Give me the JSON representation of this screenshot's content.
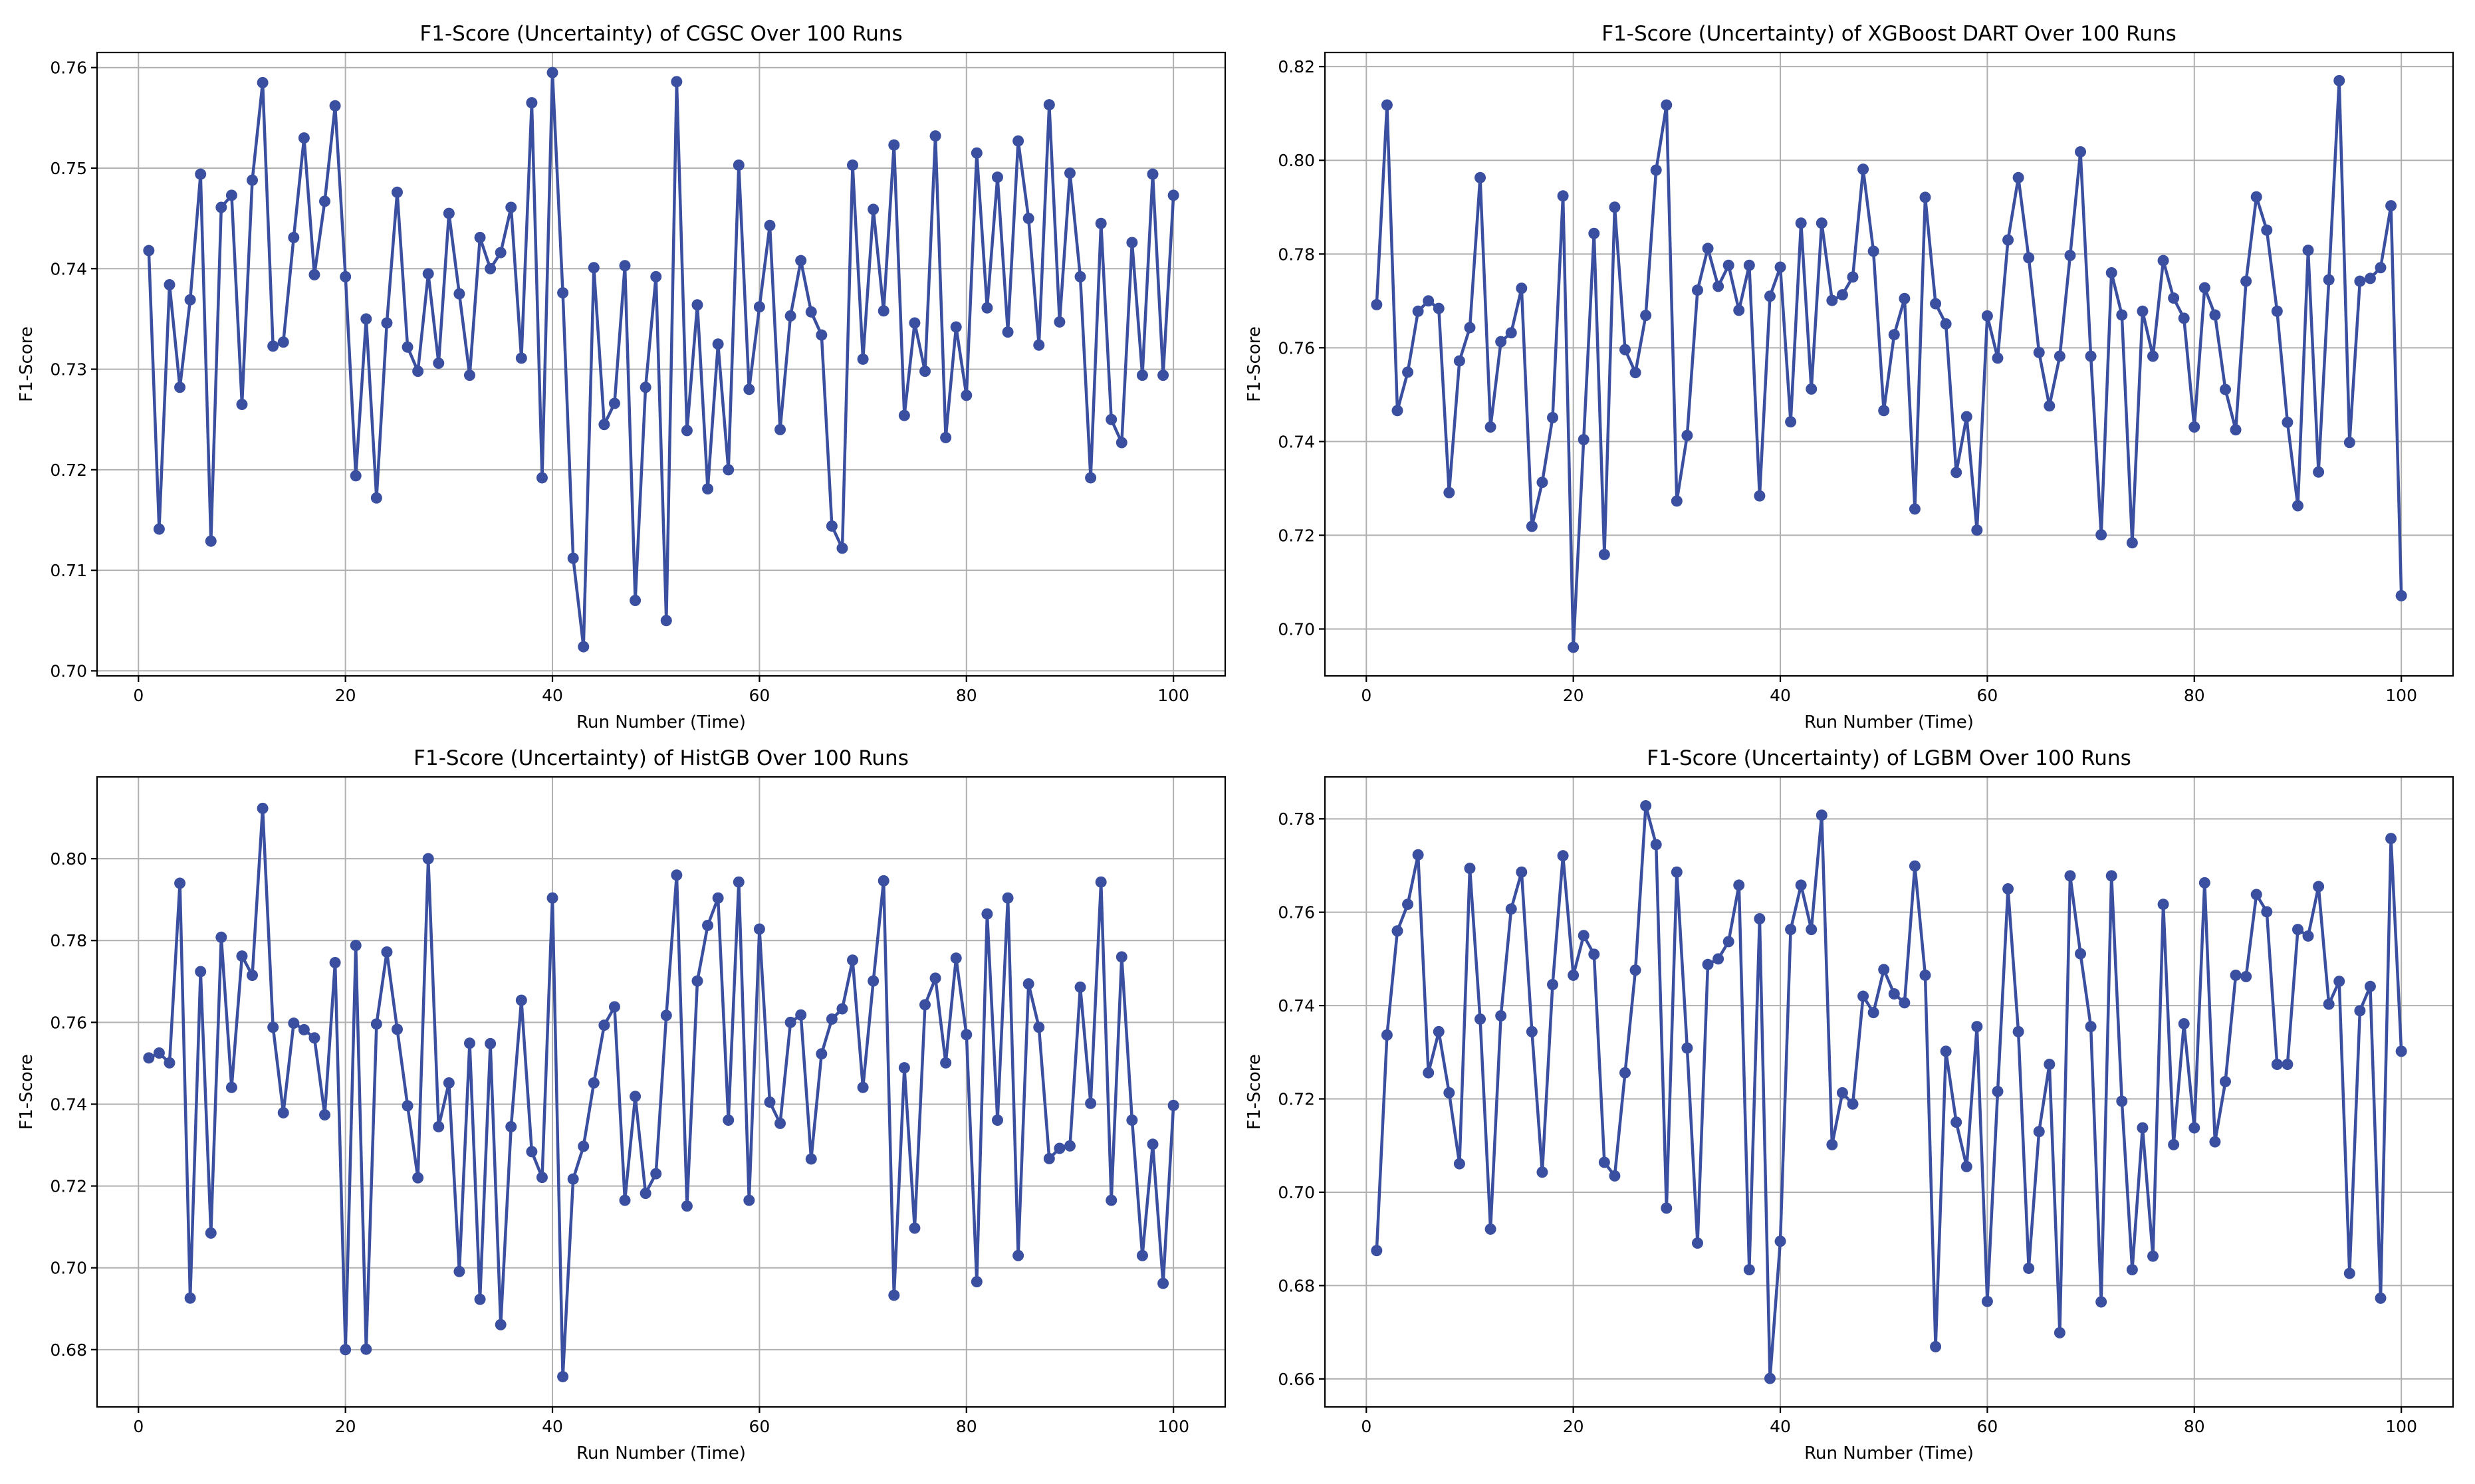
{
  "colors": {
    "series": "#3a4f9f",
    "grid": "#b0b0b0"
  },
  "chart_data": [
    {
      "type": "line",
      "title": "F1-Score (Uncertainty) of CGSC Over 100 Runs",
      "xlabel": "Run Number (Time)",
      "ylabel": "F1-Score",
      "xlim": [
        -4,
        105
      ],
      "ylim": [
        0.6995,
        0.7615
      ],
      "xticks": [
        0,
        20,
        40,
        60,
        80,
        100
      ],
      "yticks": [
        0.7,
        0.71,
        0.72,
        0.73,
        0.74,
        0.75,
        0.76
      ],
      "ytick_labels": [
        "0.70",
        "0.71",
        "0.72",
        "0.73",
        "0.74",
        "0.75",
        "0.76"
      ],
      "grid": true,
      "series": [
        {
          "name": "CGSC",
          "values": [
            0.7418,
            0.7141,
            0.7384,
            0.7282,
            0.7369,
            0.7494,
            0.7129,
            0.7461,
            0.7473,
            0.7265,
            0.7488,
            0.7585,
            0.7323,
            0.7327,
            0.7431,
            0.753,
            0.7394,
            0.7467,
            0.7562,
            0.7392,
            0.7194,
            0.735,
            0.7172,
            0.7346,
            0.7476,
            0.7322,
            0.7298,
            0.7395,
            0.7306,
            0.7455,
            0.7375,
            0.7294,
            0.7431,
            0.74,
            0.7416,
            0.7461,
            0.7311,
            0.7565,
            0.7192,
            0.7595,
            0.7376,
            0.7112,
            0.7024,
            0.7401,
            0.7245,
            0.7266,
            0.7403,
            0.707,
            0.7282,
            0.7392,
            0.705,
            0.7586,
            0.7239,
            0.7364,
            0.7181,
            0.7325,
            0.72,
            0.7503,
            0.728,
            0.7362,
            0.7443,
            0.724,
            0.7353,
            0.7408,
            0.7357,
            0.7334,
            0.7144,
            0.7122,
            0.7503,
            0.731,
            0.7459,
            0.7358,
            0.7523,
            0.7254,
            0.7346,
            0.7298,
            0.7532,
            0.7232,
            0.7342,
            0.7274,
            0.7515,
            0.7361,
            0.7491,
            0.7337,
            0.7527,
            0.745,
            0.7324,
            0.7563,
            0.7347,
            0.7495,
            0.7392,
            0.7192,
            0.7445,
            0.725,
            0.7227,
            0.7426,
            0.7294,
            0.7494,
            0.7294,
            0.7473
          ]
        }
      ]
    },
    {
      "type": "line",
      "title": "F1-Score (Uncertainty) of XGBoost DART Over 100 Runs",
      "xlabel": "Run Number (Time)",
      "ylabel": "F1-Score",
      "xlim": [
        -4,
        105
      ],
      "ylim": [
        0.69,
        0.823
      ],
      "xticks": [
        0,
        20,
        40,
        60,
        80,
        100
      ],
      "yticks": [
        0.7,
        0.72,
        0.74,
        0.76,
        0.78,
        0.8,
        0.82
      ],
      "ytick_labels": [
        "0.70",
        "0.72",
        "0.74",
        "0.76",
        "0.78",
        "0.80",
        "0.82"
      ],
      "grid": true,
      "series": [
        {
          "name": "XGBoost DART",
          "values": [
            0.7692,
            0.8118,
            0.7466,
            0.7548,
            0.7678,
            0.77,
            0.7684,
            0.7291,
            0.7572,
            0.7643,
            0.7963,
            0.7431,
            0.7613,
            0.7632,
            0.7727,
            0.7219,
            0.7313,
            0.7451,
            0.7924,
            0.6961,
            0.7404,
            0.7844,
            0.7159,
            0.79,
            0.7596,
            0.7547,
            0.7669,
            0.7979,
            0.8118,
            0.7273,
            0.7413,
            0.7723,
            0.7812,
            0.7731,
            0.7776,
            0.768,
            0.7776,
            0.7284,
            0.771,
            0.7772,
            0.7442,
            0.7866,
            0.7512,
            0.7866,
            0.7701,
            0.7713,
            0.7751,
            0.7981,
            0.7806,
            0.7466,
            0.7628,
            0.7705,
            0.7256,
            0.7921,
            0.7694,
            0.7651,
            0.7334,
            0.7453,
            0.7211,
            0.7668,
            0.7578,
            0.783,
            0.7963,
            0.7792,
            0.759,
            0.7476,
            0.7582,
            0.7797,
            0.8018,
            0.7582,
            0.7201,
            0.776,
            0.767,
            0.7184,
            0.7678,
            0.7582,
            0.7786,
            0.7706,
            0.7663,
            0.7431,
            0.7728,
            0.767,
            0.7511,
            0.7425,
            0.7742,
            0.7922,
            0.7851,
            0.7678,
            0.7441,
            0.7263,
            0.7808,
            0.7335,
            0.7745,
            0.817,
            0.7398,
            0.7742,
            0.7748,
            0.7771,
            0.7903,
            0.7071
          ]
        }
      ]
    },
    {
      "type": "line",
      "title": "F1-Score (Uncertainty) of HistGB Over 100 Runs",
      "xlabel": "Run Number (Time)",
      "ylabel": "F1-Score",
      "xlim": [
        -4,
        105
      ],
      "ylim": [
        0.666,
        0.82
      ],
      "xticks": [
        0,
        20,
        40,
        60,
        80,
        100
      ],
      "yticks": [
        0.68,
        0.7,
        0.72,
        0.74,
        0.76,
        0.78,
        0.8
      ],
      "ytick_labels": [
        "0.68",
        "0.70",
        "0.72",
        "0.74",
        "0.76",
        "0.78",
        "0.80"
      ],
      "grid": true,
      "series": [
        {
          "name": "HistGB",
          "values": [
            0.7513,
            0.7525,
            0.7501,
            0.794,
            0.6926,
            0.7724,
            0.7085,
            0.7808,
            0.7441,
            0.7762,
            0.7715,
            0.8123,
            0.7588,
            0.7379,
            0.7598,
            0.7582,
            0.7562,
            0.7374,
            0.7746,
            0.68,
            0.7788,
            0.6801,
            0.7596,
            0.7772,
            0.7583,
            0.7396,
            0.722,
            0.8,
            0.7345,
            0.7452,
            0.6991,
            0.7549,
            0.6923,
            0.7548,
            0.6861,
            0.7345,
            0.7654,
            0.7284,
            0.7221,
            0.7904,
            0.6734,
            0.7217,
            0.7297,
            0.7452,
            0.7593,
            0.7638,
            0.7165,
            0.7419,
            0.7182,
            0.723,
            0.7617,
            0.796,
            0.7151,
            0.7701,
            0.7837,
            0.7904,
            0.7361,
            0.7943,
            0.7165,
            0.7828,
            0.7405,
            0.7353,
            0.76,
            0.7618,
            0.7266,
            0.7523,
            0.7608,
            0.7633,
            0.7752,
            0.7441,
            0.7701,
            0.7946,
            0.6933,
            0.7489,
            0.7097,
            0.7643,
            0.7708,
            0.7501,
            0.7757,
            0.757,
            0.6966,
            0.7865,
            0.7361,
            0.7904,
            0.703,
            0.7694,
            0.7588,
            0.7267,
            0.7292,
            0.7298,
            0.7686,
            0.7402,
            0.7943,
            0.7165,
            0.776,
            0.7361,
            0.703,
            0.7302,
            0.6962,
            0.7397
          ]
        }
      ]
    },
    {
      "type": "line",
      "title": "F1-Score (Uncertainty) of LGBM Over 100 Runs",
      "xlabel": "Run Number (Time)",
      "ylabel": "F1-Score",
      "xlim": [
        -4,
        105
      ],
      "ylim": [
        0.654,
        0.789
      ],
      "xticks": [
        0,
        20,
        40,
        60,
        80,
        100
      ],
      "yticks": [
        0.66,
        0.68,
        0.7,
        0.72,
        0.74,
        0.76,
        0.78
      ],
      "ytick_labels": [
        "0.66",
        "0.68",
        "0.70",
        "0.72",
        "0.74",
        "0.76",
        "0.78"
      ],
      "grid": true,
      "series": [
        {
          "name": "LGBM",
          "values": [
            0.6875,
            0.7337,
            0.756,
            0.7617,
            0.7723,
            0.7256,
            0.7344,
            0.7213,
            0.7061,
            0.7694,
            0.7371,
            0.6921,
            0.7378,
            0.7607,
            0.7686,
            0.7344,
            0.7043,
            0.7445,
            0.7721,
            0.7465,
            0.755,
            0.751,
            0.7064,
            0.7035,
            0.7256,
            0.7476,
            0.7828,
            0.7745,
            0.6966,
            0.7686,
            0.7309,
            0.6891,
            0.7488,
            0.75,
            0.7537,
            0.7658,
            0.6834,
            0.7586,
            0.6601,
            0.6895,
            0.7563,
            0.7658,
            0.7563,
            0.7808,
            0.7102,
            0.7213,
            0.7189,
            0.742,
            0.7385,
            0.7477,
            0.7425,
            0.7406,
            0.7699,
            0.7465,
            0.6669,
            0.7302,
            0.715,
            0.7055,
            0.7355,
            0.6766,
            0.7216,
            0.765,
            0.7344,
            0.6837,
            0.713,
            0.7274,
            0.6699,
            0.7678,
            0.7511,
            0.7355,
            0.6765,
            0.7678,
            0.7195,
            0.6834,
            0.7138,
            0.6863,
            0.7617,
            0.7102,
            0.7361,
            0.7138,
            0.7663,
            0.7108,
            0.7237,
            0.7465,
            0.7462,
            0.7638,
            0.7601,
            0.7274,
            0.7274,
            0.7563,
            0.7549,
            0.7655,
            0.7403,
            0.7452,
            0.6826,
            0.7389,
            0.7441,
            0.6773,
            0.7758,
            0.7302
          ]
        }
      ]
    }
  ]
}
